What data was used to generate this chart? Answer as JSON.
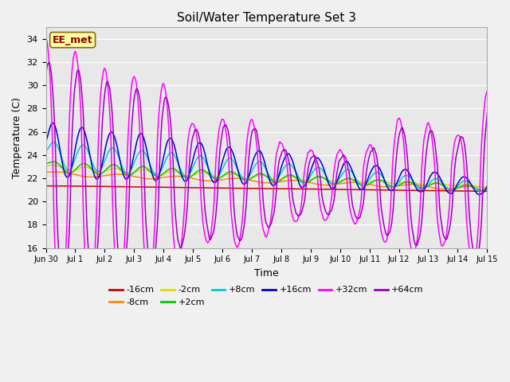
{
  "title": "Soil/Water Temperature Set 3",
  "xlabel": "Time",
  "ylabel": "Temperature (C)",
  "annotation": "EE_met",
  "ylim": [
    16,
    35
  ],
  "yticks": [
    16,
    18,
    20,
    22,
    24,
    26,
    28,
    30,
    32,
    34
  ],
  "n_days": 16,
  "series_colors": {
    "-16cm": "#cc0000",
    "-8cm": "#ff8800",
    "-2cm": "#dddd00",
    "+2cm": "#00cc00",
    "+8cm": "#00cccc",
    "+16cm": "#0000cc",
    "+32cm": "#ff00ff",
    "+64cm": "#9900bb"
  },
  "fig_bg": "#f0f0f0",
  "plot_bg": "#e8e8e8",
  "grid_color": "#ffffff",
  "title_fontsize": 11,
  "axis_label_fontsize": 9,
  "tick_fontsize": 8,
  "xtick_fontsize": 7,
  "legend_fontsize": 8,
  "linewidth": 1.1
}
